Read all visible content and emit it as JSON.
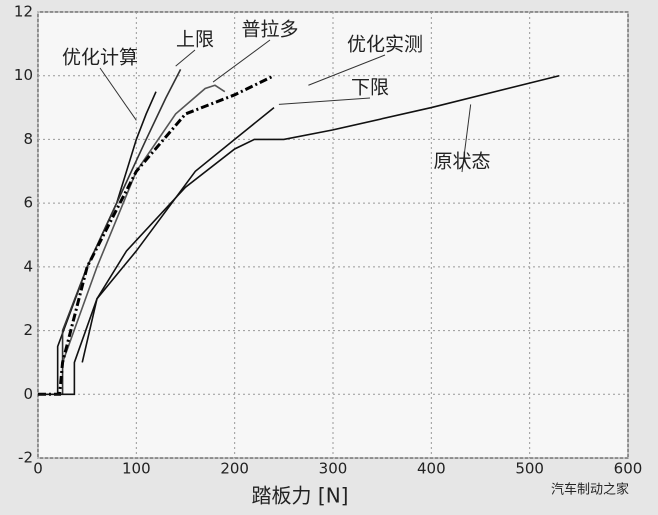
{
  "chart_data": {
    "type": "line",
    "xlabel": "踏板力 [N]",
    "watermark": "汽车制动之家",
    "xlim": [
      0,
      600
    ],
    "ylim": [
      -2,
      12
    ],
    "xticks": [
      0,
      100,
      200,
      300,
      400,
      500,
      600
    ],
    "yticks": [
      -2,
      0,
      2,
      4,
      6,
      8,
      10,
      12
    ],
    "grid": true,
    "series": [
      {
        "name": "优化计算",
        "color": "#111",
        "style": "solid",
        "x": [
          20,
          20,
          50,
          80,
          100,
          110,
          120
        ],
        "values": [
          0,
          1.5,
          4,
          6,
          8,
          8.8,
          9.5
        ]
      },
      {
        "name": "上限",
        "color": "#333",
        "style": "solid",
        "x": [
          25,
          25,
          50,
          80,
          110,
          130,
          145
        ],
        "values": [
          0,
          2,
          4,
          6,
          8,
          9.3,
          10.2
        ]
      },
      {
        "name": "普拉多",
        "color": "#555",
        "style": "solid",
        "x": [
          25,
          60,
          100,
          140,
          170,
          180,
          190
        ],
        "values": [
          1,
          4,
          7,
          8.8,
          9.6,
          9.7,
          9.5
        ]
      },
      {
        "name": "优化实测",
        "color": "#000",
        "style": "dashdot",
        "x": [
          0,
          22,
          25,
          50,
          100,
          150,
          200,
          240
        ],
        "values": [
          0,
          0,
          1,
          4,
          7,
          8.8,
          9.4,
          10
        ]
      },
      {
        "name": "下限",
        "color": "#111",
        "style": "solid",
        "x": [
          45,
          60,
          100,
          160,
          200,
          240
        ],
        "values": [
          1,
          3,
          4.5,
          7,
          8,
          9
        ]
      },
      {
        "name": "原状态",
        "color": "#111",
        "style": "solid",
        "x": [
          0,
          37,
          37,
          60,
          90,
          150,
          200,
          220,
          250,
          300,
          400,
          530
        ],
        "values": [
          0,
          0,
          1,
          3,
          4.5,
          6.5,
          7.7,
          8,
          8,
          8.3,
          9,
          10
        ]
      }
    ]
  }
}
